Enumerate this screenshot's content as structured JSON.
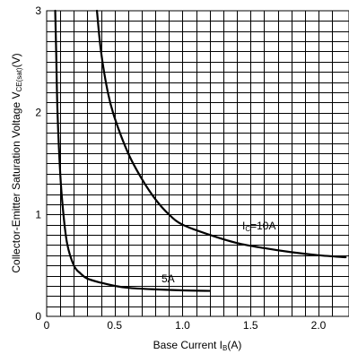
{
  "chart_data": {
    "type": "line",
    "title": "",
    "xlabel": {
      "main": "Base Current I",
      "sub": "B",
      "tail": "(A)"
    },
    "ylabel": {
      "main": "Collector-Emitter Saturation Voltage V",
      "sub": "CE(sat)",
      "tail": "(V)"
    },
    "xlim": [
      0,
      2.2
    ],
    "ylim": [
      0,
      3
    ],
    "x_ticks": [
      "0",
      "0.5",
      "1.0",
      "1.5",
      "2.0"
    ],
    "y_ticks": [
      "0",
      "1",
      "2",
      "3"
    ],
    "grid": true,
    "series": [
      {
        "name": "5A",
        "x": [
          0.063,
          0.07,
          0.08,
          0.1,
          0.12,
          0.15,
          0.2,
          0.25,
          0.3,
          0.4,
          0.5,
          0.6,
          0.8,
          1.0,
          1.2
        ],
        "y": [
          3.0,
          2.6,
          2.0,
          1.4,
          1.05,
          0.72,
          0.5,
          0.42,
          0.37,
          0.33,
          0.3,
          0.28,
          0.265,
          0.255,
          0.25
        ]
      },
      {
        "name": "IC=10A",
        "label_main": "I",
        "label_sub": "C",
        "label_tail": "=10A",
        "x": [
          0.37,
          0.4,
          0.45,
          0.5,
          0.6,
          0.7,
          0.8,
          0.9,
          1.0,
          1.2,
          1.4,
          1.6,
          1.8,
          2.0,
          2.2
        ],
        "y": [
          3.0,
          2.6,
          2.2,
          1.95,
          1.6,
          1.35,
          1.15,
          1.0,
          0.9,
          0.8,
          0.72,
          0.67,
          0.63,
          0.6,
          0.58
        ]
      }
    ]
  }
}
